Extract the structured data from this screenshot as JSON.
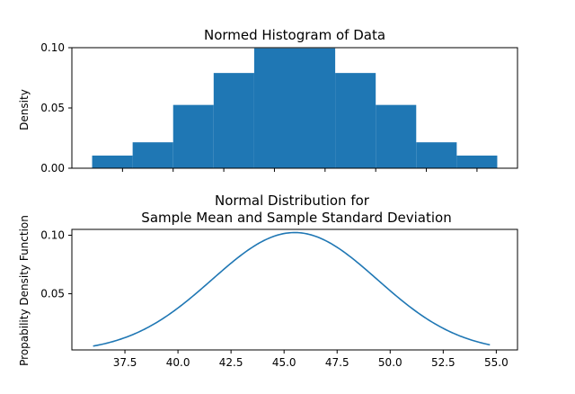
{
  "colors": {
    "bar": "#1f77b4",
    "line": "#1f77b4",
    "axis": "#000000",
    "background": "#ffffff"
  },
  "chart_data": [
    {
      "type": "bar",
      "title": "Normed Histogram of Data",
      "xlabel": "",
      "ylabel": "Density",
      "bin_edges": [
        36,
        38,
        40,
        42,
        44,
        46,
        48,
        50,
        52,
        54,
        56
      ],
      "values": [
        0.0105,
        0.0215,
        0.0525,
        0.079,
        0.0995,
        0.0995,
        0.079,
        0.0525,
        0.0215,
        0.0105
      ],
      "xlim": [
        35.0,
        57.0
      ],
      "ylim": [
        0.0,
        0.1
      ],
      "yticks": [
        0.0,
        0.05,
        0.1
      ],
      "ytick_labels": [
        "0.00",
        "0.05",
        "0.10"
      ],
      "xticks": [
        37.5,
        40.0,
        42.5,
        45.0,
        47.5,
        50.0,
        52.5,
        55.0
      ],
      "xtick_labels_visible": false,
      "grid": false
    },
    {
      "type": "line",
      "title": "Normal Distribution for\nSample Mean and Sample Standard Deviation",
      "title_lines": [
        "Normal Distribution for",
        "Sample Mean and Sample Standard Deviation"
      ],
      "xlabel": "",
      "ylabel": "Propability Density Function",
      "mean": 45.5,
      "std": 3.9,
      "x_range": [
        36.0,
        54.7
      ],
      "xlim": [
        35.0,
        56.0
      ],
      "ylim": [
        0.002,
        0.105
      ],
      "yticks": [
        0.05,
        0.1
      ],
      "ytick_labels": [
        "0.05",
        "0.10"
      ],
      "xticks": [
        37.5,
        40.0,
        42.5,
        45.0,
        47.5,
        50.0,
        52.5,
        55.0
      ],
      "xtick_labels": [
        "37.5",
        "40.0",
        "42.5",
        "45.0",
        "47.5",
        "50.0",
        "52.5",
        "55.0"
      ],
      "grid": false
    }
  ]
}
